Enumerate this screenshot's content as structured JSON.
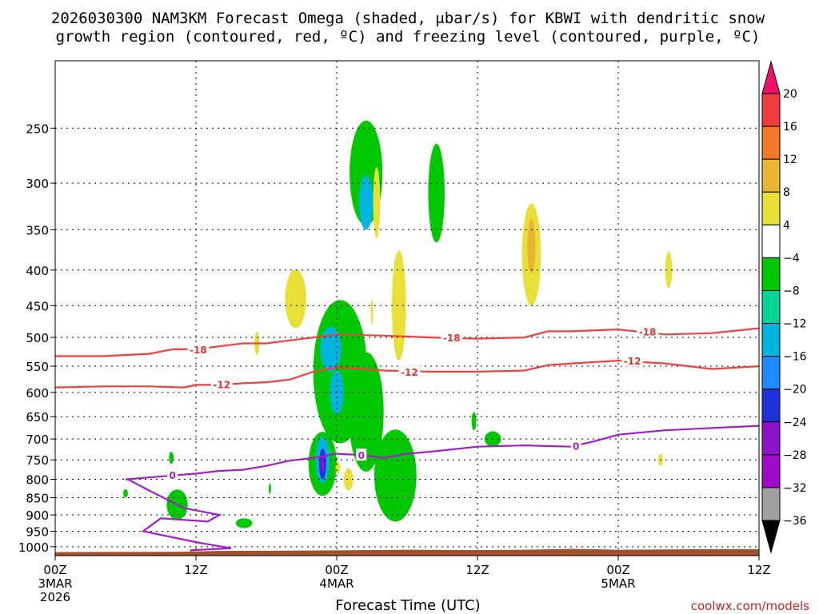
{
  "chart_data": {
    "type": "contour",
    "title_line1": "2026030300 NAM3KM Forecast Omega (shaded, μbar/s) for KBWI with dendritic snow",
    "title_line2": "growth region (contoured, red, ºC) and freezing level (contoured, purple, ºC)",
    "xlabel": "Forecast Time (UTC)",
    "credit": "coolwx.com/models",
    "x_ticks": [
      {
        "hour": 0,
        "label": "00Z",
        "sub1": "3MAR",
        "sub2": "2026"
      },
      {
        "hour": 12,
        "label": "12Z",
        "sub1": "",
        "sub2": ""
      },
      {
        "hour": 24,
        "label": "00Z",
        "sub1": "4MAR",
        "sub2": ""
      },
      {
        "hour": 36,
        "label": "12Z",
        "sub1": "",
        "sub2": ""
      },
      {
        "hour": 48,
        "label": "00Z",
        "sub1": "5MAR",
        "sub2": ""
      },
      {
        "hour": 60,
        "label": "12Z",
        "sub1": "",
        "sub2": ""
      }
    ],
    "x_range_hours": [
      0,
      60
    ],
    "y_ticks": [
      250,
      300,
      350,
      400,
      450,
      500,
      550,
      600,
      650,
      700,
      750,
      800,
      850,
      900,
      950,
      1000
    ],
    "y_tick_labels": [
      "250",
      "300",
      "350",
      "400",
      "450",
      "500",
      "550",
      "600",
      "650",
      "700",
      "750",
      "800",
      "850",
      "900",
      "950",
      "1000"
    ],
    "y_range_hPa": [
      1025,
      200
    ],
    "colorbar": {
      "labels": [
        "20",
        "16",
        "12",
        "8",
        "4",
        "−4",
        "−8",
        "−12",
        "−16",
        "−20",
        "−24",
        "−28",
        "−32",
        "−36"
      ],
      "colors": [
        "#f0106e",
        "#f03c3c",
        "#f07828",
        "#e8b432",
        "#e8e037",
        "#ffffff",
        "#00c800",
        "#00d496",
        "#00b4e0",
        "#1e8cff",
        "#1e32dc",
        "#8c14c8",
        "#a00ac8",
        "#a0a0a0",
        "#000000"
      ]
    },
    "contour_labels": {
      "dgz_upper": "-18",
      "dgz_lower": "-12",
      "freezing": "0"
    },
    "series": [
      {
        "name": "dgz_-18C",
        "color": "#f04040",
        "x": [
          0,
          4,
          8,
          10,
          12,
          14,
          16,
          18,
          20,
          22,
          24,
          28,
          32,
          36,
          40,
          42,
          44,
          48,
          52,
          56,
          60
        ],
        "y": [
          532,
          532,
          528,
          520,
          520,
          515,
          510,
          510,
          505,
          500,
          495,
          497,
          500,
          502,
          500,
          490,
          490,
          487,
          495,
          493,
          485
        ]
      },
      {
        "name": "dgz_-12C",
        "color": "#f04040",
        "x": [
          0,
          4,
          8,
          11,
          12,
          14,
          16,
          18,
          20,
          22,
          24,
          28,
          32,
          36,
          40,
          42,
          44,
          48,
          52,
          56,
          60
        ],
        "y": [
          590,
          588,
          588,
          590,
          585,
          585,
          582,
          580,
          575,
          560,
          552,
          558,
          560,
          560,
          558,
          548,
          545,
          540,
          545,
          555,
          550
        ]
      },
      {
        "name": "freezing_0C",
        "color": "#a020c8",
        "x": [
          6,
          8,
          10,
          12,
          14,
          16,
          18,
          20,
          22,
          24,
          26,
          28,
          30,
          32,
          36,
          40,
          44,
          46,
          48,
          52,
          56,
          60
        ],
        "y": [
          800,
          795,
          790,
          785,
          778,
          775,
          765,
          752,
          745,
          735,
          738,
          745,
          735,
          730,
          718,
          715,
          718,
          705,
          690,
          680,
          675,
          670
        ]
      }
    ],
    "omega_regions": [
      {
        "value": -6,
        "t": 26.5,
        "p": 290,
        "dt": 1.4,
        "dp": 55
      },
      {
        "value": -6,
        "t": 32.5,
        "p": 310,
        "dt": 0.7,
        "dp": 55
      },
      {
        "value": -14,
        "t": 26.5,
        "p": 320,
        "dt": 0.6,
        "dp": 30
      },
      {
        "value": 6,
        "t": 27.4,
        "p": 320,
        "dt": 0.3,
        "dp": 40
      },
      {
        "value": 6,
        "t": 20.5,
        "p": 440,
        "dt": 0.9,
        "dp": 45
      },
      {
        "value": 6,
        "t": 29.3,
        "p": 450,
        "dt": 0.6,
        "dp": 90
      },
      {
        "value": 6,
        "t": 40.6,
        "p": 380,
        "dt": 0.8,
        "dp": 70
      },
      {
        "value": 10,
        "t": 40.6,
        "p": 370,
        "dt": 0.35,
        "dp": 35
      },
      {
        "value": 6,
        "t": 52.3,
        "p": 400,
        "dt": 0.3,
        "dp": 25
      },
      {
        "value": 6,
        "t": 17.2,
        "p": 510,
        "dt": 0.2,
        "dp": 20
      },
      {
        "value": 6,
        "t": 27.0,
        "p": 460,
        "dt": 0.1,
        "dp": 20
      },
      {
        "value": -6,
        "t": 24.3,
        "p": 560,
        "dt": 2.3,
        "dp": 150
      },
      {
        "value": -6,
        "t": 26.5,
        "p": 640,
        "dt": 1.5,
        "dp": 140
      },
      {
        "value": -6,
        "t": 22.8,
        "p": 760,
        "dt": 1.2,
        "dp": 85
      },
      {
        "value": -6,
        "t": 29.0,
        "p": 790,
        "dt": 1.8,
        "dp": 130
      },
      {
        "value": -14,
        "t": 23.5,
        "p": 520,
        "dt": 0.9,
        "dp": 40
      },
      {
        "value": -14,
        "t": 24.0,
        "p": 600,
        "dt": 0.6,
        "dp": 45
      },
      {
        "value": -14,
        "t": 22.8,
        "p": 750,
        "dt": 0.6,
        "dp": 60
      },
      {
        "value": -22,
        "t": 22.8,
        "p": 760,
        "dt": 0.3,
        "dp": 40
      },
      {
        "value": -30,
        "t": 22.8,
        "p": 760,
        "dt": 0.15,
        "dp": 22
      },
      {
        "value": -6,
        "t": 10.4,
        "p": 870,
        "dt": 0.9,
        "dp": 45
      },
      {
        "value": -6,
        "t": 16.1,
        "p": 925,
        "dt": 0.7,
        "dp": 15
      },
      {
        "value": -6,
        "t": 37.3,
        "p": 700,
        "dt": 0.7,
        "dp": 18
      },
      {
        "value": -6,
        "t": 35.7,
        "p": 660,
        "dt": 0.2,
        "dp": 20
      },
      {
        "value": -6,
        "t": 9.9,
        "p": 745,
        "dt": 0.2,
        "dp": 15
      },
      {
        "value": -6,
        "t": 6.0,
        "p": 838,
        "dt": 0.2,
        "dp": 12
      },
      {
        "value": -6,
        "t": 18.3,
        "p": 825,
        "dt": 0.1,
        "dp": 15
      },
      {
        "value": 6,
        "t": 25.0,
        "p": 800,
        "dt": 0.4,
        "dp": 30
      },
      {
        "value": 6,
        "t": 24.1,
        "p": 770,
        "dt": 0.2,
        "dp": 15
      },
      {
        "value": 6,
        "t": 51.6,
        "p": 750,
        "dt": 0.2,
        "dp": 15
      }
    ],
    "terrain": {
      "color": "#a0522d",
      "x": [
        0,
        10,
        14,
        20,
        24,
        30,
        36,
        40,
        44,
        48,
        52,
        56,
        60
      ],
      "y": [
        1018,
        1017,
        1014,
        1013,
        1012,
        1010,
        1011,
        1010,
        1007,
        1010,
        1009,
        1008,
        1008
      ]
    }
  }
}
